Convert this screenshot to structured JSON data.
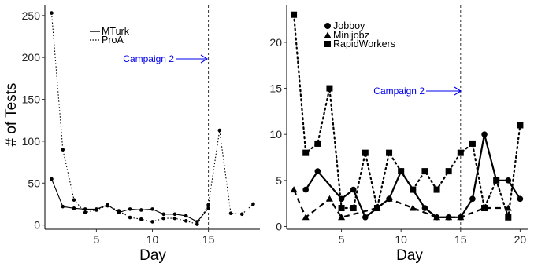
{
  "chart_data": [
    {
      "type": "line",
      "xlabel": "Day",
      "ylabel": "# of Tests",
      "xlim": [
        0.4,
        19.6
      ],
      "ylim": [
        -5,
        262
      ],
      "x_ticks": [
        5,
        10,
        15
      ],
      "y_ticks": [
        0,
        50,
        100,
        150,
        200,
        250
      ],
      "x_tick_labels": [
        "5",
        "10",
        "15"
      ],
      "y_tick_labels": [
        "0",
        "50",
        "100",
        "150",
        "200",
        "250"
      ],
      "grid": false,
      "legend_position": "top-center",
      "annotation": {
        "text": "Campaign 2",
        "x": 15,
        "color": "#0000ee"
      },
      "series": [
        {
          "name": "MTurk",
          "line_style": "solid",
          "x": [
            1,
            2,
            3,
            4,
            5,
            6,
            7,
            8,
            9,
            10,
            11,
            12,
            13,
            14,
            15
          ],
          "values": [
            55,
            22,
            20,
            19,
            19,
            24,
            15,
            19,
            18,
            19,
            13,
            13,
            11,
            4,
            20
          ]
        },
        {
          "name": "ProA",
          "line_style": "dotted",
          "x": [
            1,
            2,
            3,
            4,
            5,
            6,
            7,
            8,
            9,
            10,
            11,
            12,
            13,
            14,
            15,
            16,
            17,
            18,
            19
          ],
          "values": [
            253,
            90,
            30,
            15,
            18,
            23,
            17,
            9,
            7,
            4,
            8,
            8,
            5,
            1,
            24,
            113,
            14,
            13,
            25
          ]
        }
      ]
    },
    {
      "type": "line",
      "xlabel": "Day",
      "ylabel": "",
      "xlim": [
        0.4,
        20.7
      ],
      "ylim": [
        -0.3,
        24
      ],
      "x_ticks": [
        5,
        10,
        15,
        20
      ],
      "y_ticks": [
        0,
        5,
        10,
        15,
        20
      ],
      "x_tick_labels": [
        "5",
        "10",
        "15",
        "20"
      ],
      "y_tick_labels": [
        "0",
        "5",
        "10",
        "15",
        "20"
      ],
      "grid": false,
      "legend_position": "top-left",
      "annotation": {
        "text": "Campaign 2",
        "x": 15,
        "color": "#0000ee"
      },
      "series": [
        {
          "name": "Jobboy",
          "line_style": "solid",
          "marker": "circle",
          "x": [
            2,
            3,
            5,
            6,
            7,
            8,
            9,
            10,
            11,
            12,
            13,
            14,
            15,
            16,
            17,
            18,
            19,
            20
          ],
          "values": [
            4,
            6,
            3,
            4,
            1,
            2,
            3,
            6,
            4,
            2,
            1,
            1,
            1,
            3,
            10,
            5,
            5,
            3
          ]
        },
        {
          "name": "Minijobz",
          "line_style": "dashed",
          "marker": "triangle",
          "x": [
            1,
            2,
            4,
            5,
            8,
            9,
            11,
            13,
            14,
            15,
            17,
            19
          ],
          "values": [
            4,
            1,
            3,
            1,
            2,
            3,
            2,
            1,
            1,
            1,
            2,
            2
          ]
        },
        {
          "name": "RapidWorkers",
          "line_style": "dotted",
          "marker": "square",
          "x": [
            1,
            2,
            3,
            4,
            5,
            6,
            7,
            8,
            9,
            10,
            11,
            12,
            13,
            14,
            15,
            16,
            17,
            18,
            19,
            20
          ],
          "values": [
            23,
            8,
            9,
            15,
            2,
            2,
            8,
            2,
            8,
            6,
            4,
            6,
            4,
            6,
            8,
            9,
            2,
            5,
            1,
            11
          ]
        }
      ]
    }
  ]
}
